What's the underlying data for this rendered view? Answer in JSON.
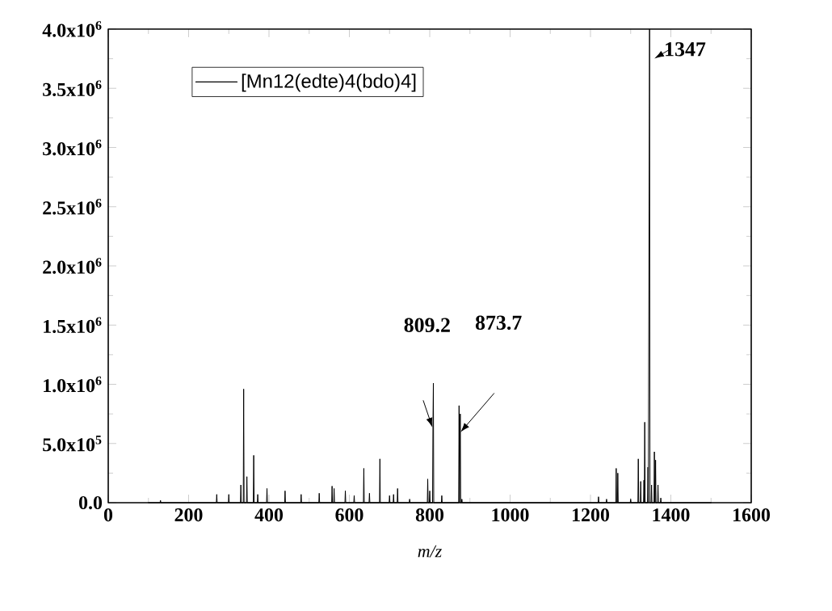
{
  "chart_data": {
    "type": "line",
    "xlabel": "*m/z*",
    "x": [
      100,
      129,
      130,
      131,
      269,
      270,
      271,
      299,
      300,
      301,
      329,
      330,
      331,
      336,
      337,
      338,
      344,
      345,
      346,
      361,
      362,
      363,
      371,
      372,
      373,
      394,
      395,
      396,
      439,
      440,
      441,
      479,
      480,
      481,
      524,
      525,
      526,
      556,
      557,
      558,
      561,
      562,
      563,
      589,
      590,
      591,
      611,
      612,
      613,
      635,
      636,
      637,
      649,
      650,
      651,
      675,
      676,
      677,
      699,
      700,
      701,
      709,
      710,
      711,
      719,
      720,
      721,
      749,
      750,
      751,
      794,
      795,
      796,
      799,
      800,
      801,
      807,
      808,
      809,
      810,
      829,
      830,
      831,
      872,
      873,
      874,
      876,
      877,
      879,
      880,
      881,
      1219,
      1220,
      1221,
      1239,
      1240,
      1241,
      1263,
      1264,
      1265,
      1267,
      1268,
      1269,
      1299,
      1300,
      1301,
      1318,
      1319,
      1320,
      1324,
      1325,
      1326,
      1332,
      1333,
      1334,
      1335,
      1336,
      1342,
      1343,
      1344,
      1347,
      1348,
      1351,
      1352,
      1353,
      1358,
      1359,
      1360,
      1361,
      1362,
      1363,
      1367,
      1368,
      1369,
      1374,
      1375,
      1376,
      1500
    ],
    "series": [
      {
        "name": "[Mn12(edte)4(bdo)4]",
        "color": "#000000",
        "values": [
          0,
          0,
          20000,
          0,
          0,
          70000,
          0,
          0,
          70000,
          0,
          0,
          150000,
          0,
          0,
          960000,
          0,
          0,
          220000,
          0,
          0,
          400000,
          0,
          0,
          70000,
          0,
          0,
          120000,
          0,
          0,
          100000,
          0,
          0,
          70000,
          0,
          0,
          80000,
          0,
          0,
          140000,
          0,
          0,
          120000,
          0,
          0,
          100000,
          0,
          0,
          60000,
          0,
          0,
          290000,
          0,
          0,
          80000,
          0,
          0,
          370000,
          0,
          0,
          60000,
          0,
          0,
          70000,
          0,
          0,
          120000,
          0,
          0,
          30000,
          0,
          0,
          200000,
          0,
          0,
          100000,
          0,
          0,
          640000,
          1010000,
          0,
          0,
          60000,
          0,
          0,
          820000,
          0,
          750000,
          0,
          0,
          30000,
          0,
          0,
          50000,
          0,
          0,
          30000,
          0,
          0,
          290000,
          0,
          0,
          250000,
          0,
          0,
          30000,
          0,
          0,
          370000,
          0,
          0,
          180000,
          0,
          0,
          190000,
          0,
          680000,
          0,
          0,
          300000,
          0,
          4000000,
          0,
          0,
          150000,
          0,
          0,
          430000,
          0,
          0,
          360000,
          0,
          0,
          150000,
          0,
          0,
          40000,
          0,
          0
        ]
      }
    ],
    "xlim": [
      0,
      1600
    ],
    "xticks": [
      0,
      200,
      400,
      600,
      800,
      1000,
      1200,
      1400,
      1600
    ],
    "ylim": [
      0,
      4000000
    ],
    "yticks": [
      {
        "value": 0,
        "label": "0.0"
      },
      {
        "value": 500000,
        "label": "5.0x10$^{5}$"
      },
      {
        "value": 1000000,
        "label": "1.0x10$^{6}$"
      },
      {
        "value": 1500000,
        "label": "1.5x10$^{6}$"
      },
      {
        "value": 2000000,
        "label": "2.0x10$^{6}$"
      },
      {
        "value": 2500000,
        "label": "2.5x10$^{6}$"
      },
      {
        "value": 3000000,
        "label": "3.0x10$^{6}$"
      },
      {
        "value": 3500000,
        "label": "3.5x10$^{6}$"
      },
      {
        "value": 4000000,
        "label": "4.0x10$^{6}$"
      }
    ],
    "annotations": [
      "809.2",
      "873.7",
      "1347"
    ],
    "legend": "top left",
    "grid": false
  }
}
